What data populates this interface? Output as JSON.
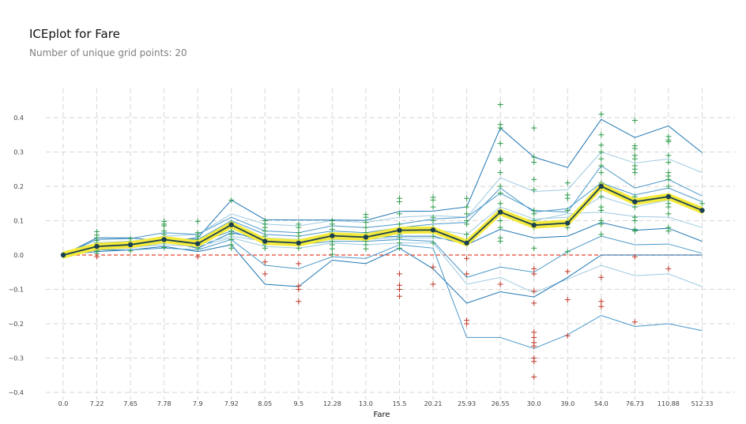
{
  "header": {
    "title": "ICEplot for Fare",
    "subtitle": "Number of unique grid points: 20"
  },
  "chart_data": {
    "type": "line",
    "title": "ICEplot for Fare",
    "subtitle": "Number of unique grid points: 20",
    "xlabel": "Fare",
    "ylabel": "",
    "categories": [
      "0.0",
      "7.22",
      "7.65",
      "7.78",
      "7.9",
      "7.92",
      "8.05",
      "9.5",
      "12.28",
      "13.0",
      "15.5",
      "20.21",
      "25.93",
      "26.55",
      "30.0",
      "39.0",
      "54.0",
      "76.73",
      "110.88",
      "512.33"
    ],
    "ylim": [
      -0.41,
      0.48
    ],
    "yticks": [
      -0.4,
      -0.3,
      -0.2,
      -0.1,
      0.0,
      0.1,
      0.2,
      0.3,
      0.4
    ],
    "ytick_labels": [
      "−0.4",
      "−0.3",
      "−0.2",
      "−0.1",
      "0.0",
      "0.1",
      "0.2",
      "0.3",
      "0.4"
    ],
    "grid": true,
    "colors": {
      "ice_dark": "#1f77b4",
      "ice_mid": "#4a98c9",
      "ice_light": "#9ecae1",
      "pdp_line": "#1a4150",
      "pdp_band": "#f4ea3d",
      "zero_line": "#e8432d",
      "plus_pos": "#2e9c4b",
      "plus_neg": "#c0392b"
    },
    "series": [
      {
        "shade": "dark",
        "values": [
          0,
          0.05,
          0.05,
          0.04,
          0.05,
          0.16,
          0.103,
          0.102,
          0.102,
          0.101,
          0.127,
          0.128,
          0.14,
          0.37,
          0.285,
          0.255,
          0.395,
          0.342,
          0.376,
          0.298
        ]
      },
      {
        "shade": "light",
        "values": [
          0,
          0.03,
          0.035,
          0.055,
          0.06,
          0.12,
          0.09,
          0.085,
          0.1,
          0.095,
          0.11,
          0.115,
          0.11,
          0.225,
          0.185,
          0.19,
          0.3,
          0.268,
          0.28,
          0.24
        ]
      },
      {
        "shade": "mid",
        "values": [
          0,
          0.045,
          0.048,
          0.065,
          0.06,
          0.11,
          0.07,
          0.065,
          0.085,
          0.08,
          0.09,
          0.105,
          0.11,
          0.18,
          0.13,
          0.125,
          0.26,
          0.195,
          0.22,
          0.172
        ]
      },
      {
        "shade": "light",
        "values": [
          0,
          0.02,
          0.025,
          0.035,
          0.03,
          0.08,
          0.05,
          0.045,
          0.06,
          0.058,
          0.07,
          0.075,
          0.06,
          0.14,
          0.105,
          0.11,
          0.17,
          0.14,
          0.16,
          0.13
        ]
      },
      {
        "shade": "mid",
        "values": [
          0,
          0.035,
          0.04,
          0.05,
          0.045,
          0.1,
          0.06,
          0.055,
          0.07,
          0.065,
          0.08,
          0.09,
          0.095,
          0.195,
          0.125,
          0.135,
          0.21,
          0.175,
          0.195,
          0.155
        ]
      },
      {
        "shade": "dark",
        "values": [
          0,
          0.03,
          0.035,
          0.04,
          0.02,
          0.065,
          0.045,
          0.04,
          0.05,
          0.05,
          0.055,
          0.055,
          0.03,
          0.075,
          0.05,
          0.055,
          0.095,
          0.072,
          0.078,
          0.04
        ]
      },
      {
        "shade": "light",
        "values": [
          0,
          0.015,
          0.02,
          0.035,
          0.03,
          0.055,
          0.04,
          0.035,
          0.045,
          0.045,
          0.05,
          0.05,
          0.04,
          0.12,
          0.1,
          0.12,
          0.125,
          0.112,
          0.11,
          0.08
        ]
      },
      {
        "shade": "mid",
        "values": [
          0,
          0.025,
          0.03,
          0.04,
          0.035,
          0.07,
          0.035,
          0.03,
          0.04,
          0.04,
          0.045,
          0.04,
          -0.065,
          -0.035,
          -0.05,
          0.01,
          0.055,
          0.03,
          0.032,
          0.005
        ]
      },
      {
        "shade": "light",
        "values": [
          0,
          0.02,
          0.022,
          0.03,
          0.025,
          0.05,
          0.025,
          0.02,
          0.035,
          0.03,
          0.035,
          0.035,
          -0.085,
          -0.065,
          -0.11,
          -0.07,
          -0.03,
          -0.06,
          -0.055,
          -0.092
        ]
      },
      {
        "shade": "dark",
        "values": [
          0,
          0.01,
          0.015,
          0.025,
          0.01,
          0.03,
          -0.085,
          -0.092,
          -0.015,
          -0.025,
          0.02,
          -0.04,
          -0.14,
          -0.107,
          -0.122,
          -0.065,
          0.0,
          0.0,
          0.0,
          0.0
        ]
      },
      {
        "shade": "mid",
        "values": [
          0,
          0.015,
          0.015,
          0.02,
          0.015,
          0.045,
          -0.03,
          -0.04,
          -0.005,
          -0.01,
          0.03,
          0.02,
          -0.24,
          -0.24,
          -0.272,
          -0.232,
          -0.176,
          -0.208,
          -0.2,
          -0.22
        ]
      }
    ],
    "pdp": {
      "values": [
        0,
        0.025,
        0.03,
        0.045,
        0.033,
        0.088,
        0.04,
        0.035,
        0.056,
        0.052,
        0.072,
        0.073,
        0.035,
        0.125,
        0.087,
        0.093,
        0.2,
        0.155,
        0.17,
        0.13
      ],
      "band_halfwidth": 0.008
    },
    "markers": [
      {
        "x": "7.22",
        "values": [
          0.068,
          0.058,
          0.05,
          0.042,
          0.035,
          0.03,
          0.022,
          0.012,
          0.005,
          -0.005
        ]
      },
      {
        "x": "7.65",
        "values": [
          0.048,
          0.04,
          0.035,
          0.027,
          0.012
        ]
      },
      {
        "x": "7.78",
        "values": [
          0.098,
          0.09,
          0.085,
          0.07,
          0.06,
          0.048,
          0.035,
          0.022
        ]
      },
      {
        "x": "7.9",
        "values": [
          0.098,
          0.065,
          0.055,
          0.045,
          0.035,
          0.02,
          -0.005
        ]
      },
      {
        "x": "7.92",
        "values": [
          0.16,
          0.095,
          0.08,
          0.07,
          0.06,
          0.045,
          0.03,
          0.02
        ]
      },
      {
        "x": "8.05",
        "values": [
          0.1,
          0.09,
          0.08,
          0.07,
          0.055,
          0.045,
          0.03,
          0.02,
          -0.02,
          -0.055
        ]
      },
      {
        "x": "9.5",
        "values": [
          0.09,
          0.08,
          0.065,
          0.055,
          0.045,
          0.03,
          0.02,
          -0.025,
          -0.09,
          -0.1,
          -0.135
        ]
      },
      {
        "x": "12.28",
        "values": [
          0.1,
          0.09,
          0.075,
          0.065,
          0.055,
          0.04,
          0.03,
          0.018,
          0.002
        ]
      },
      {
        "x": "13.0",
        "values": [
          0.118,
          0.11,
          0.095,
          0.08,
          0.065,
          0.055,
          0.04,
          0.03,
          0.018
        ]
      },
      {
        "x": "15.5",
        "values": [
          0.165,
          0.155,
          0.12,
          0.09,
          0.075,
          0.06,
          0.05,
          0.035,
          0.02,
          -0.055,
          -0.088,
          -0.1,
          -0.12
        ]
      },
      {
        "x": "20.21",
        "values": [
          0.168,
          0.16,
          0.14,
          0.11,
          0.1,
          0.08,
          0.07,
          0.055,
          0.035,
          -0.035,
          -0.085
        ]
      },
      {
        "x": "25.93",
        "values": [
          0.165,
          0.14,
          0.12,
          0.1,
          0.09,
          0.06,
          0.045,
          0.035,
          -0.01,
          -0.055,
          -0.19,
          -0.2
        ]
      },
      {
        "x": "26.55",
        "values": [
          0.438,
          0.38,
          0.37,
          0.325,
          0.28,
          0.275,
          0.24,
          0.2,
          0.18,
          0.15,
          0.13,
          0.1,
          0.08,
          0.05,
          0.04,
          -0.085
        ]
      },
      {
        "x": "30.0",
        "values": [
          0.37,
          0.285,
          0.27,
          0.22,
          0.19,
          0.13,
          0.12,
          0.1,
          0.09,
          0.08,
          0.02,
          -0.04,
          -0.055,
          -0.105,
          -0.14,
          -0.225,
          -0.24,
          -0.255,
          -0.265,
          -0.3,
          -0.31,
          -0.355
        ]
      },
      {
        "x": "39.0",
        "values": [
          0.21,
          0.175,
          0.165,
          0.13,
          0.1,
          0.09,
          0.08,
          0.01,
          -0.048,
          -0.13,
          -0.235
        ]
      },
      {
        "x": "54.0",
        "values": [
          0.41,
          0.35,
          0.32,
          0.3,
          0.28,
          0.26,
          0.24,
          0.21,
          0.2,
          0.19,
          0.17,
          0.14,
          0.13,
          0.1,
          0.09,
          0.06,
          -0.065,
          -0.135,
          -0.15
        ]
      },
      {
        "x": "76.73",
        "values": [
          0.392,
          0.318,
          0.31,
          0.29,
          0.28,
          0.26,
          0.25,
          0.24,
          0.17,
          0.16,
          0.14,
          0.11,
          0.1,
          0.075,
          0.07,
          -0.005,
          -0.195
        ]
      },
      {
        "x": "110.88",
        "values": [
          0.345,
          0.335,
          0.33,
          0.29,
          0.27,
          0.24,
          0.23,
          0.22,
          0.2,
          0.16,
          0.15,
          0.14,
          0.12,
          0.08,
          0.07,
          -0.04
        ]
      },
      {
        "x": "512.33",
        "values": [
          0.15,
          0.13
        ]
      }
    ]
  }
}
